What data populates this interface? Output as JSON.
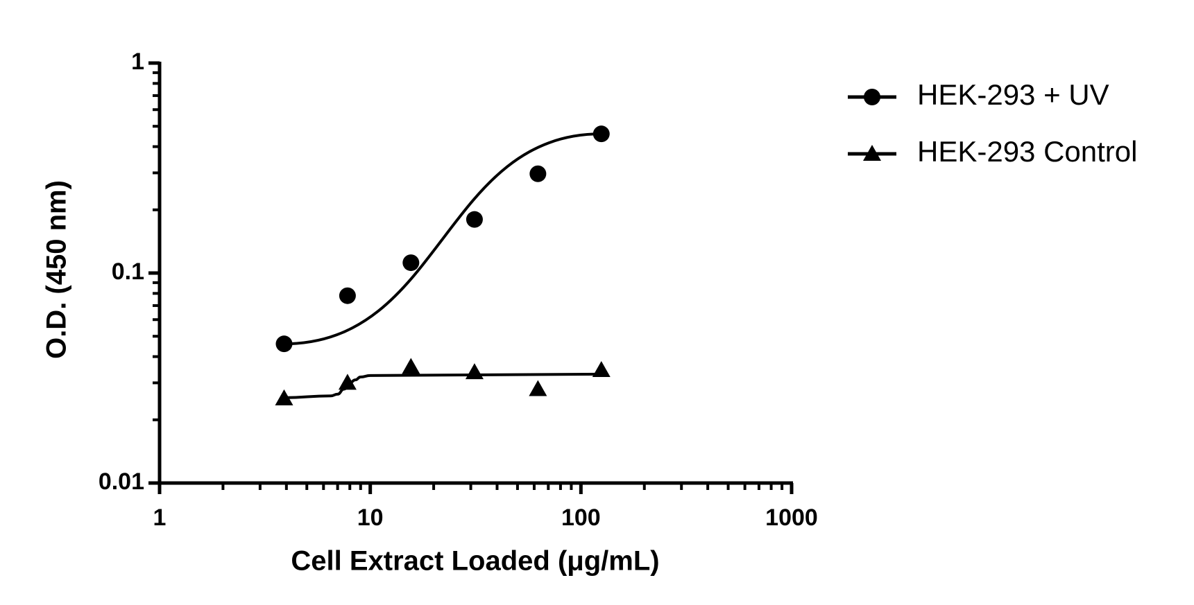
{
  "chart_data": {
    "type": "line",
    "x_label": "Cell Extract Loaded (μg/mL)",
    "y_label": "O.D. (450 nm)",
    "x": [
      3.9,
      7.8,
      15.6,
      31.25,
      62.5,
      125
    ],
    "x_log": true,
    "y_log": true,
    "xlim": [
      1,
      1000
    ],
    "ylim": [
      0.01,
      1
    ],
    "xticks": [
      1,
      10,
      100,
      1000
    ],
    "yticks": [
      0.01,
      0.1,
      1
    ],
    "xminorticks": [
      2,
      3,
      4,
      5,
      6,
      7,
      8,
      9,
      20,
      30,
      40,
      50,
      60,
      70,
      80,
      90,
      200,
      300,
      400,
      500,
      600,
      700,
      800,
      900
    ],
    "yminorticks": [
      0.02,
      0.03,
      0.04,
      0.05,
      0.06,
      0.07,
      0.08,
      0.09,
      0.2,
      0.3,
      0.4,
      0.5,
      0.6,
      0.7,
      0.8,
      0.9
    ],
    "legend": "right",
    "series": [
      {
        "name": "HEK-293 + UV",
        "color": "#000000",
        "marker": "circle",
        "values": [
          0.046,
          0.078,
          0.112,
          0.18,
          0.297,
          0.46
        ],
        "fit": {
          "x": [
            3.9,
            125
          ],
          "values": [
            0.046,
            0.46
          ]
        }
      },
      {
        "name": "HEK-293 Control",
        "color": "#000000",
        "marker": "triangle",
        "values": [
          0.0253,
          0.03,
          0.0357,
          0.0337,
          0.028,
          0.0345
        ],
        "fit": {
          "x": [
            3.9,
            6.5,
            7,
            7.5,
            8,
            8.5,
            9,
            10,
            125
          ],
          "values": [
            0.0255,
            0.026,
            0.0265,
            0.028,
            0.03,
            0.031,
            0.032,
            0.0325,
            0.033
          ]
        }
      }
    ]
  }
}
